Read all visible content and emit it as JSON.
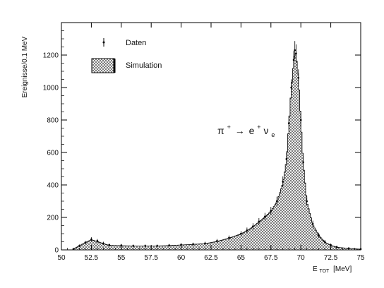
{
  "chart_data": {
    "type": "histogram",
    "title": "",
    "xlabel": "E",
    "xlabel_sub": "TOT",
    "xlabel_unit": "[MeV]",
    "ylabel": "Ereignisse/0.1 MeV",
    "xlim": [
      50,
      75
    ],
    "ylim": [
      0,
      1400
    ],
    "x_ticks": [
      50,
      52.5,
      55,
      57.5,
      60,
      62.5,
      65,
      67.5,
      70,
      72.5,
      75
    ],
    "x_tick_labels": [
      "50",
      "52.5",
      "55",
      "57.5",
      "60",
      "62.5",
      "65",
      "67.5",
      "70",
      "72.5",
      "75"
    ],
    "y_ticks": [
      0,
      200,
      400,
      600,
      800,
      1000,
      1200
    ],
    "y_tick_labels": [
      "0",
      "200",
      "400",
      "600",
      "800",
      "1000",
      "1200"
    ],
    "grid": false,
    "legend_position": "top-left",
    "legend": {
      "data_label": "Daten",
      "sim_label": "Simulation"
    },
    "annotation": {
      "base": "π",
      "sup1": "+",
      "arrow": "→",
      "e": "e",
      "sup2": "+",
      "nu": "ν",
      "sub": "e"
    },
    "series": [
      {
        "name": "Daten",
        "kind": "points",
        "x": [
          51,
          51.5,
          52,
          52.5,
          53,
          53.5,
          54,
          55,
          56,
          57,
          58,
          59,
          60,
          61,
          62,
          63,
          64,
          65,
          65.5,
          66,
          66.5,
          67,
          67.5,
          68,
          68.5,
          68.8,
          69,
          69.2,
          69.4,
          69.5,
          69.6,
          69.8,
          70,
          70.2,
          70.5,
          71,
          71.5,
          72,
          72.5,
          73,
          74,
          75
        ],
        "y": [
          5,
          25,
          45,
          65,
          55,
          40,
          30,
          28,
          25,
          25,
          25,
          28,
          32,
          35,
          40,
          55,
          75,
          100,
          120,
          145,
          175,
          205,
          240,
          300,
          420,
          560,
          780,
          1000,
          1170,
          1230,
          1210,
          1060,
          800,
          540,
          300,
          160,
          90,
          50,
          30,
          18,
          10,
          5
        ]
      },
      {
        "name": "Simulation",
        "kind": "histogram",
        "x": [
          51,
          51.5,
          52,
          52.5,
          53,
          53.5,
          54,
          55,
          56,
          57,
          58,
          59,
          60,
          61,
          62,
          63,
          64,
          65,
          65.5,
          66,
          66.5,
          67,
          67.5,
          68,
          68.5,
          68.8,
          69,
          69.2,
          69.4,
          69.5,
          69.6,
          69.8,
          70,
          70.2,
          70.5,
          71,
          71.5,
          72,
          72.5,
          73,
          74,
          75
        ],
        "y": [
          5,
          25,
          45,
          62,
          52,
          38,
          28,
          26,
          24,
          24,
          24,
          27,
          30,
          34,
          38,
          52,
          72,
          98,
          118,
          142,
          172,
          202,
          238,
          295,
          410,
          550,
          770,
          990,
          1160,
          1220,
          1200,
          1050,
          790,
          530,
          295,
          155,
          88,
          48,
          28,
          16,
          9,
          4
        ]
      }
    ]
  }
}
